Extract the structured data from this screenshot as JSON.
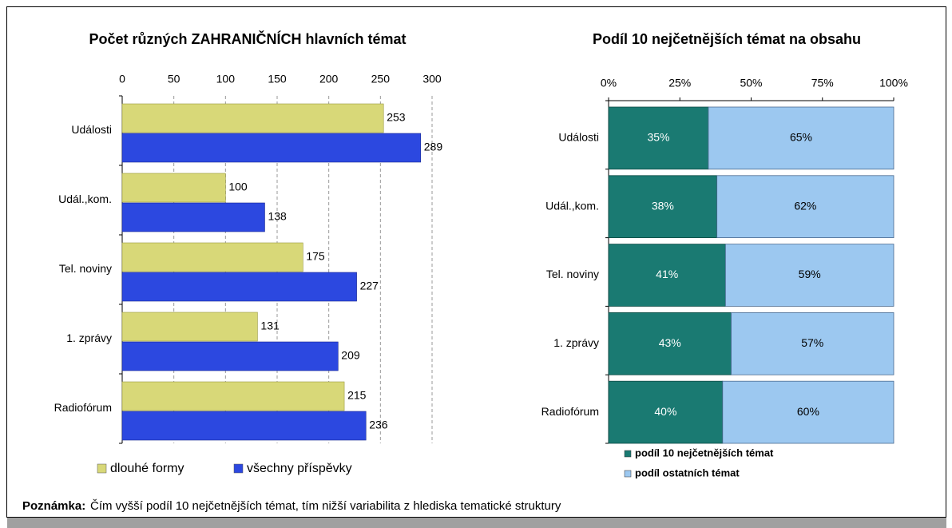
{
  "chart_data": [
    {
      "type": "bar",
      "title": "Počet různých ZAHRANIČNÍCH hlavních témat",
      "categories": [
        "Události",
        "Udál.,kom.",
        "Tel. noviny",
        "1. zprávy",
        "Radiofórum"
      ],
      "series": [
        {
          "name": "dlouhé formy",
          "color": "#d8d878",
          "values": [
            253,
            100,
            175,
            131,
            215
          ]
        },
        {
          "name": "všechny příspěvky",
          "color": "#2c48e0",
          "values": [
            289,
            138,
            227,
            209,
            236
          ]
        }
      ],
      "xlim": [
        0,
        300
      ],
      "xticks": [
        0,
        50,
        100,
        150,
        200,
        250,
        300
      ],
      "grid": true,
      "legend": "bottom"
    },
    {
      "type": "stacked_bar",
      "title": "Podíl 10 nejčetnějších témat na obsahu",
      "categories": [
        "Události",
        "Udál.,kom.",
        "Tel. noviny",
        "1. zprávy",
        "Radiofórum"
      ],
      "series": [
        {
          "name": "podíl 10 nejčetnějších témat",
          "color": "#1a7a72",
          "values": [
            35,
            38,
            41,
            43,
            40
          ],
          "value_labels": [
            "35%",
            "38%",
            "41%",
            "43%",
            "40%"
          ]
        },
        {
          "name": "podíl ostatních témat",
          "color": "#9cc8f0",
          "values": [
            65,
            62,
            59,
            57,
            60
          ],
          "value_labels": [
            "65%",
            "62%",
            "59%",
            "57%",
            "60%"
          ]
        }
      ],
      "xlim": [
        0,
        100
      ],
      "xticks": [
        {
          "value": 0,
          "label": "0%"
        },
        {
          "value": 25,
          "label": "25%"
        },
        {
          "value": 50,
          "label": "50%"
        },
        {
          "value": 75,
          "label": "75%"
        },
        {
          "value": 100,
          "label": "100%"
        }
      ],
      "grid": false,
      "legend": "bottom"
    }
  ],
  "note": {
    "label": "Poznámka:",
    "text": "Čím vyšší podíl 10 nejčetnějších témat, tím nižší variabilita z hlediska tematické struktury"
  }
}
